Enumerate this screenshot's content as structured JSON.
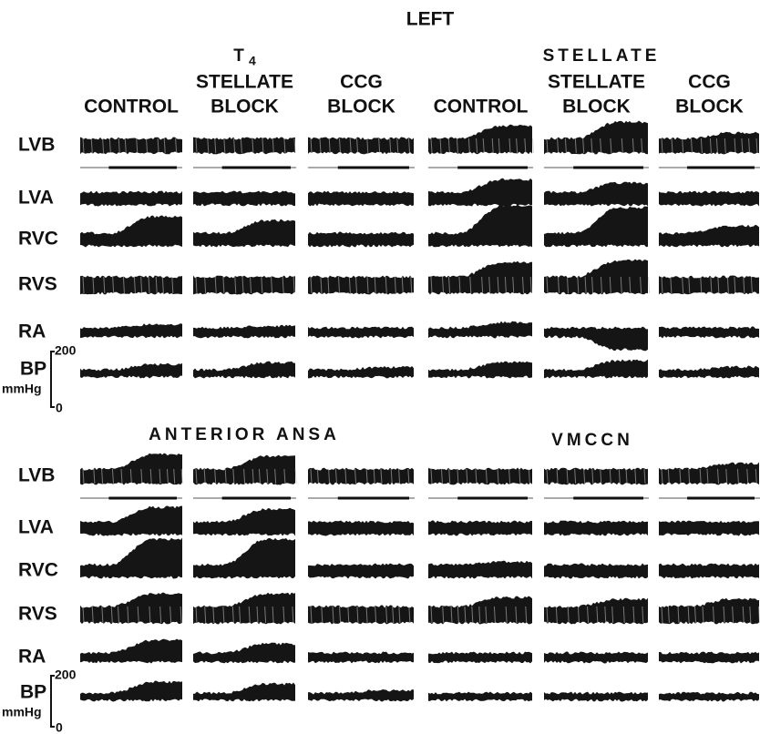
{
  "header": {
    "title": "LEFT"
  },
  "upper_groups": [
    {
      "title": "T",
      "subscript": "4",
      "columns": [
        [
          "CONTROL"
        ],
        [
          "STELLATE",
          "BLOCK"
        ],
        [
          "CCG",
          "BLOCK"
        ]
      ]
    },
    {
      "title": "STELLATE",
      "columns": [
        [
          "CONTROL"
        ],
        [
          "STELLATE",
          "BLOCK"
        ],
        [
          "CCG",
          "BLOCK"
        ]
      ]
    }
  ],
  "lower_groups": [
    {
      "title": "ANTERIOR ANSA"
    },
    {
      "title": "VMCCN"
    }
  ],
  "row_labels": [
    "LVB",
    "LVA",
    "RVC",
    "RVS",
    "RA",
    "BP"
  ],
  "bp_unit": "mmHg",
  "bp_scale": {
    "top": "200",
    "bottom": "0"
  }
}
